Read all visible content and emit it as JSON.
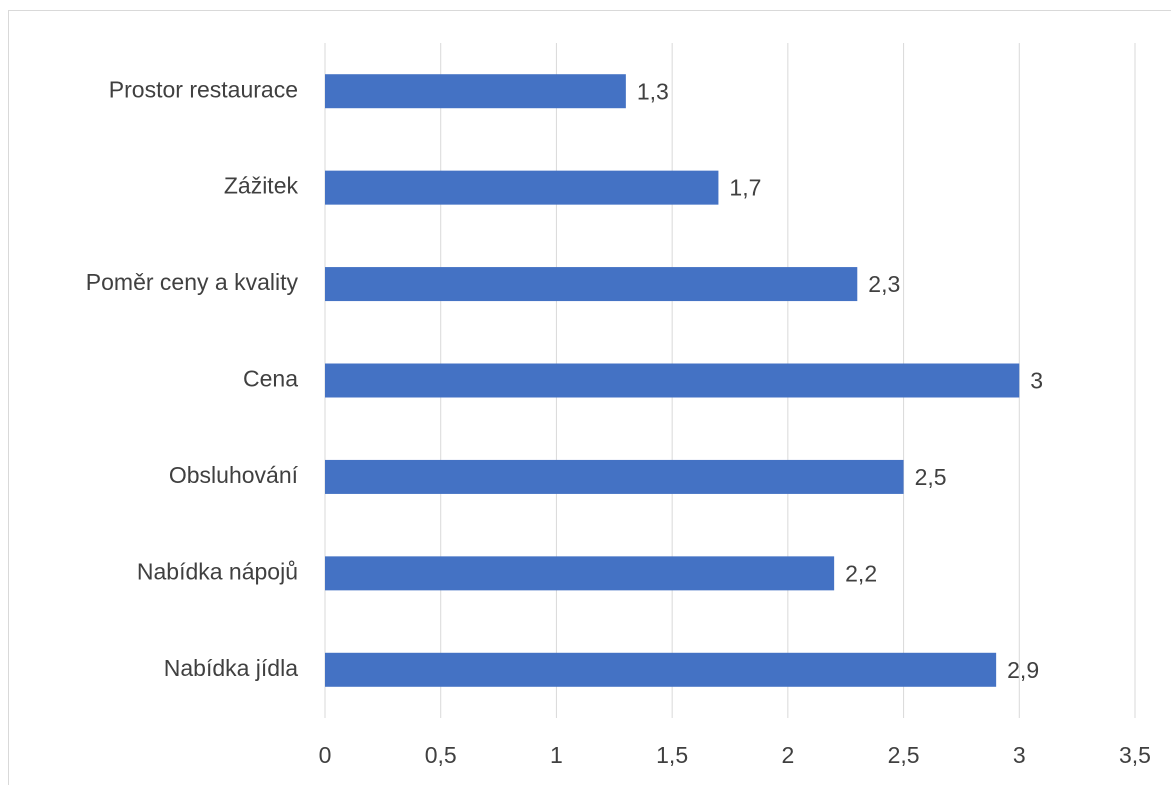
{
  "chart_data": {
    "type": "bar",
    "orientation": "horizontal",
    "categories": [
      "Prostor restaurace",
      "Zážitek",
      "Poměr ceny a kvality",
      "Cena",
      "Obsluhování",
      "Nabídka nápojů",
      "Nabídka jídla"
    ],
    "values": [
      1.3,
      1.7,
      2.3,
      3,
      2.5,
      2.2,
      2.9
    ],
    "value_labels": [
      "1,3",
      "1,7",
      "2,3",
      "3",
      "2,5",
      "2,2",
      "2,9"
    ],
    "color": "#4472c4",
    "xlim": [
      0,
      3.5
    ],
    "xticks": [
      0,
      {
        "value": 0.5,
        "label": "0,5"
      },
      1,
      {
        "value": 1.5,
        "label": "1,5"
      },
      2,
      {
        "value": 2.5,
        "label": "2,5"
      },
      3,
      {
        "value": 3.5,
        "label": "3,5"
      }
    ],
    "grid": true
  }
}
